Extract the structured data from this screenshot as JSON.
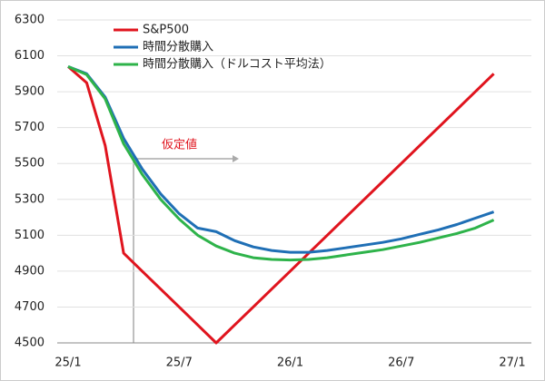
{
  "chart_data": {
    "type": "line",
    "categories": [
      "25/1",
      null,
      null,
      null,
      null,
      null,
      "25/7",
      null,
      null,
      null,
      null,
      null,
      "26/1",
      null,
      null,
      null,
      null,
      null,
      "26/7",
      null,
      null,
      null,
      null,
      null,
      "27/1"
    ],
    "series": [
      {
        "name": "S&P500",
        "color": "#e0141e",
        "values": [
          6040,
          5950,
          5600,
          5000,
          4900,
          4800,
          4700,
          4600,
          4500,
          4600,
          4700,
          4800,
          4900,
          5000,
          5100,
          5200,
          5300,
          5400,
          5500,
          5600,
          5700,
          5800,
          5900,
          6000,
          null
        ]
      },
      {
        "name": "時間分散購入",
        "color": "#1f6fb5",
        "values": [
          6040,
          6000,
          5870,
          5640,
          5470,
          5330,
          5220,
          5140,
          5120,
          5070,
          5035,
          5015,
          5005,
          5005,
          5015,
          5030,
          5045,
          5060,
          5080,
          5105,
          5130,
          5160,
          5195,
          5230,
          null
        ]
      },
      {
        "name": "時間分散購入（ドルコスト平均法）",
        "color": "#2eb34a",
        "values": [
          6040,
          5995,
          5860,
          5610,
          5440,
          5300,
          5190,
          5100,
          5040,
          5000,
          4975,
          4965,
          4962,
          4965,
          4975,
          4990,
          5005,
          5020,
          5040,
          5060,
          5085,
          5110,
          5140,
          5185,
          null
        ]
      }
    ],
    "annotation": "仮定値",
    "ylim": [
      4500,
      6300
    ],
    "yticks": [
      4500,
      4700,
      4900,
      5100,
      5300,
      5500,
      5700,
      5900,
      6100,
      6300
    ],
    "grid": true
  }
}
